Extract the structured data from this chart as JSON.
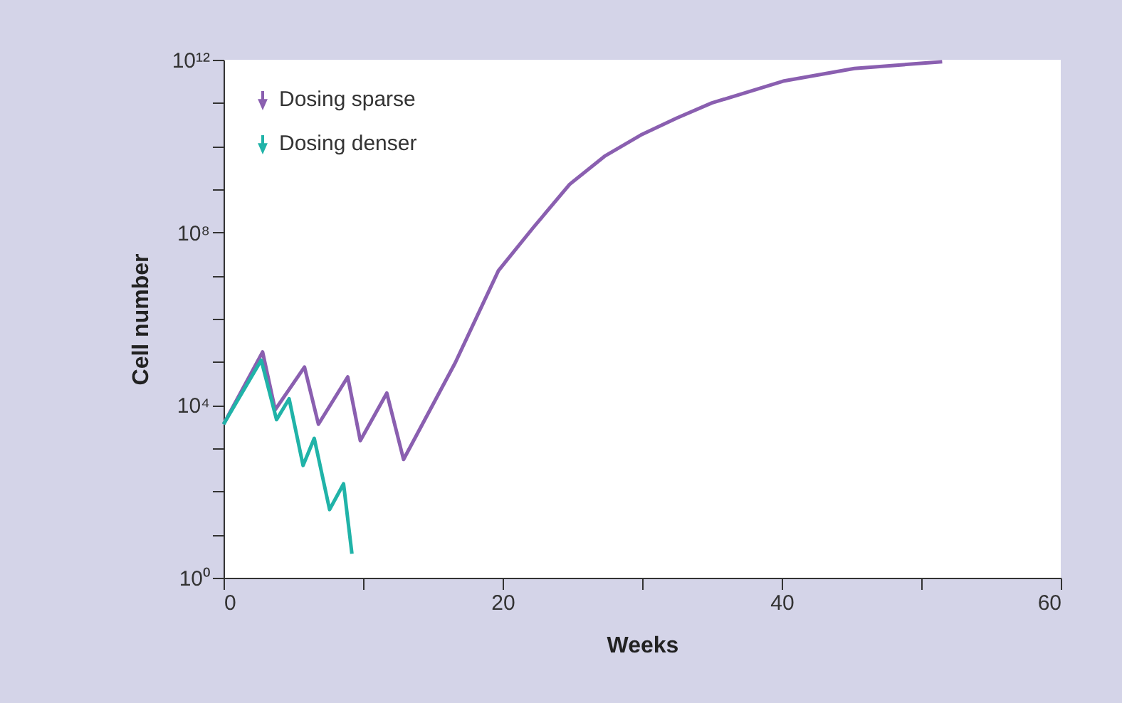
{
  "chart_data": {
    "type": "line",
    "xlabel": "Weeks",
    "ylabel": "Cell number",
    "log": "y",
    "grid": false,
    "legend": "top left",
    "line_style": "solid",
    "marker": "none",
    "xlim": [
      0,
      60
    ],
    "xticks": [
      0,
      {
        "value": 10,
        "label": null
      },
      20,
      {
        "value": 30,
        "label": null
      },
      40,
      {
        "value": 50,
        "label": null
      },
      60
    ],
    "ylim": [
      1,
      1000000000000
    ],
    "yticks": [
      {
        "value": 1,
        "label": "10⁰"
      },
      {
        "value": 10,
        "label": null
      },
      {
        "value": 100,
        "label": null
      },
      {
        "value": 1000,
        "label": null
      },
      {
        "value": 10000,
        "label": "10⁴"
      },
      {
        "value": 100000,
        "label": null
      },
      {
        "value": 1000000,
        "label": null
      },
      {
        "value": 10000000,
        "label": null
      },
      {
        "value": 100000000,
        "label": "10⁸"
      },
      {
        "value": 1000000000,
        "label": null
      },
      {
        "value": 10000000000,
        "label": null
      },
      {
        "value": 100000000000,
        "label": null
      },
      {
        "value": 1000000000000,
        "label": "10¹²"
      }
    ],
    "series": [
      {
        "name": "Dosing sparse",
        "color": "#8a5fb0",
        "x": [
          0,
          2.8,
          3.7,
          5.8,
          6.8,
          8.9,
          9.8,
          11.7,
          12.9,
          16.6,
          19.7,
          22.2,
          24.8,
          27.3,
          29.9,
          32.5,
          35,
          40.1,
          45.2,
          51.5
        ],
        "values": [
          3600,
          170000,
          7800,
          76000,
          3600,
          45000,
          1500,
          19000,
          550,
          95000,
          13000000,
          130000000,
          1300000000,
          5800000000,
          18000000000,
          45000000000,
          100000000000,
          320000000000,
          630000000000,
          900000000000
        ]
      },
      {
        "name": "Dosing denser",
        "color": "#20b3a8",
        "x": [
          0,
          2.7,
          3.8,
          4.7,
          5.7,
          6.5,
          7.6,
          8.6,
          9.2
        ],
        "values": [
          3600,
          110000,
          4600,
          14000,
          400,
          1700,
          38,
          150,
          3.6
        ]
      }
    ]
  }
}
